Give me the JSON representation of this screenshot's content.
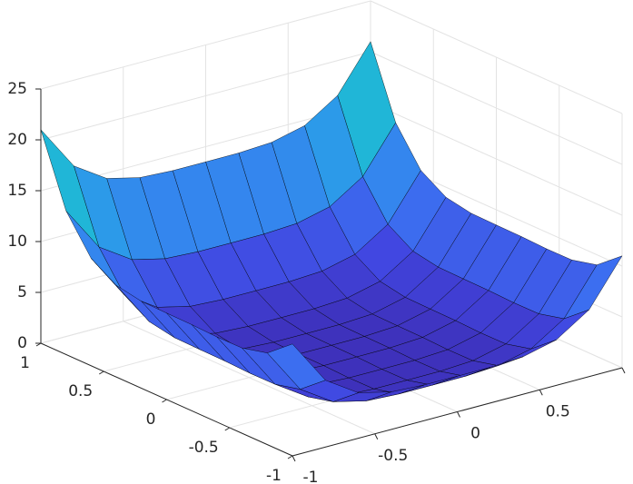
{
  "chart_data": {
    "type": "surface",
    "x": [
      -1,
      -0.8,
      -0.6,
      -0.4,
      -0.2,
      0,
      0.2,
      0.4,
      0.6,
      0.8,
      1
    ],
    "y": [
      -1,
      -0.8,
      -0.6,
      -0.4,
      -0.2,
      0,
      0.2,
      0.4,
      0.6,
      0.8,
      1
    ],
    "z": [
      [
        11,
        6.57,
        4.47,
        3.69,
        3.51,
        3.5,
        3.51,
        3.69,
        4.47,
        6.57,
        11
      ],
      [
        9.01,
        4.58,
        2.48,
        1.7,
        1.52,
        1.51,
        1.52,
        1.7,
        2.48,
        4.58,
        9.01
      ],
      [
        8.39,
        3.96,
        1.86,
        1.08,
        0.9,
        0.89,
        0.9,
        1.08,
        1.86,
        3.96,
        8.39
      ],
      [
        8.37,
        3.94,
        1.84,
        1.06,
        0.88,
        0.87,
        0.88,
        1.06,
        1.84,
        3.94,
        8.37
      ],
      [
        8.47,
        4.04,
        1.94,
        1.16,
        0.98,
        0.97,
        0.98,
        1.16,
        1.94,
        4.04,
        8.47
      ],
      [
        8.5,
        4.07,
        1.97,
        1.19,
        1.01,
        1,
        1.01,
        1.19,
        1.97,
        4.07,
        8.5
      ],
      [
        8.55,
        4.12,
        2.02,
        1.24,
        1.06,
        1.05,
        1.06,
        1.24,
        2.02,
        4.12,
        8.55
      ],
      [
        9.01,
        4.58,
        2.48,
        1.7,
        1.52,
        1.51,
        1.52,
        1.7,
        2.48,
        4.58,
        9.01
      ],
      [
        10.55,
        6.12,
        4.02,
        3.24,
        3.06,
        3.05,
        3.06,
        3.24,
        4.02,
        6.12,
        10.55
      ],
      [
        14.13,
        9.7,
        7.6,
        6.82,
        6.64,
        6.63,
        6.64,
        6.82,
        7.6,
        9.7,
        14.13
      ],
      [
        21,
        16.57,
        14.47,
        13.69,
        13.51,
        13.5,
        13.51,
        13.69,
        14.47,
        16.57,
        21
      ]
    ],
    "xlim": [
      -1,
      1
    ],
    "ylim": [
      -1,
      1
    ],
    "zlim": [
      0,
      25
    ],
    "xticks": [
      -1,
      -0.5,
      0,
      0.5,
      1
    ],
    "yticks": [
      -1,
      -0.5,
      0,
      0.5,
      1
    ],
    "zticks": [
      0,
      5,
      10,
      15,
      20,
      25
    ],
    "grid": true,
    "edge_color": "#000000",
    "colormap": [
      "#3d2bb0",
      "#4146e0",
      "#3b74f2",
      "#2a9ee8",
      "#1cc1cf",
      "#4ccb8a",
      "#7fd35a"
    ]
  }
}
